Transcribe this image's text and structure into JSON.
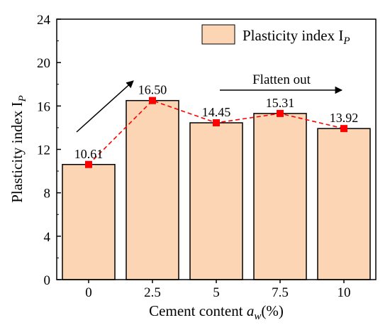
{
  "chart_data": {
    "type": "bar",
    "categories": [
      "0",
      "2.5",
      "5",
      "7.5",
      "10"
    ],
    "series": [
      {
        "name": "Plasticity index I_P",
        "values": [
          10.61,
          16.5,
          14.45,
          15.31,
          13.92
        ],
        "value_labels": [
          "10.61",
          "16.50",
          "14.45",
          "15.31",
          "13.92"
        ]
      }
    ],
    "overlay_line": {
      "style": "dashed",
      "marker": "square",
      "color": "#ff0000"
    },
    "bar_fill": "#fcd5b5",
    "bar_stroke": "#000000",
    "xlabel": {
      "main": "Cement content ",
      "sym": "a",
      "sub": "w",
      "tail": "(%)"
    },
    "ylabel": {
      "main": "Plasticity index I",
      "sub": "P"
    },
    "ylim": [
      0,
      24
    ],
    "yticks": [
      "0",
      "4",
      "8",
      "12",
      "16",
      "20",
      "24"
    ],
    "legend": {
      "position": "top-right",
      "main": "Plasticity index I",
      "sub": "P"
    },
    "annotations": [
      {
        "text": "Flatten out",
        "type": "arrow-with-label"
      },
      {
        "text": "",
        "type": "arrow",
        "direction": "up-right"
      }
    ],
    "grid": false
  }
}
